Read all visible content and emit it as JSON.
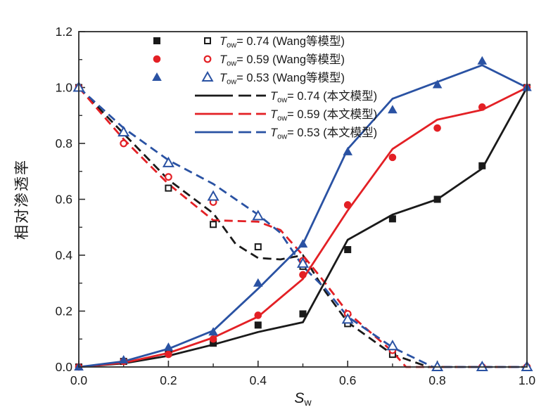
{
  "chart_data": {
    "type": "line",
    "title": "",
    "xlabel": "Sw",
    "ylabel": "相对渗透率",
    "x_axis": {
      "label_main": "S",
      "label_sub": "w",
      "range": [
        0.0,
        1.0
      ],
      "majors": [
        0.0,
        0.2,
        0.4,
        0.6,
        0.8,
        1.0
      ],
      "major_labels": [
        "0.0",
        "0.2",
        "0.4",
        "0.6",
        "0.8",
        "1.0"
      ],
      "minor_step": 0.1
    },
    "y_axis": {
      "label": "相对渗透率",
      "range": [
        0.0,
        1.2
      ],
      "majors": [
        0.0,
        0.2,
        0.4,
        0.6,
        0.8,
        1.0,
        1.2
      ],
      "major_labels": [
        "0.0",
        "0.2",
        "0.4",
        "0.6",
        "0.8",
        "1.0",
        "1.2"
      ],
      "minor_step": 0.1
    },
    "grid": false,
    "legend_position": "top-center-inside",
    "colors": {
      "black": "#1a1a1a",
      "red": "#e32025",
      "blue": "#2a52a3",
      "frame": "#2b2b2b",
      "background": "#ffffff"
    },
    "legend": {
      "prefix_italic": "T",
      "prefix_sub": "ow",
      "rows": [
        {
          "style": "markers",
          "marker": "square",
          "color": "black",
          "text": "= 0.74 (Wang等模型)"
        },
        {
          "style": "markers",
          "marker": "circle",
          "color": "red",
          "text": "= 0.59  (Wang等模型)"
        },
        {
          "style": "markers",
          "marker": "triangle",
          "color": "blue",
          "text": "= 0.53 (Wang等模型)"
        },
        {
          "style": "lines",
          "marker": "none",
          "color": "black",
          "text": "= 0.74 (本文模型)"
        },
        {
          "style": "lines",
          "marker": "none",
          "color": "red",
          "text": "= 0.59 (本文模型)"
        },
        {
          "style": "lines",
          "marker": "none",
          "color": "blue",
          "text": "= 0.53 (本文模型)"
        }
      ]
    },
    "series": [
      {
        "id": "line-tow074-dashed",
        "legend": "Tow= 0.74 (本文模型)",
        "type": "line",
        "style": "dashed",
        "color": "black",
        "x": [
          0,
          0.1,
          0.2,
          0.3,
          0.35,
          0.4,
          0.45,
          0.5,
          0.55,
          0.6,
          0.7,
          0.78,
          1.0
        ],
        "y": [
          1.0,
          0.835,
          0.67,
          0.55,
          0.44,
          0.39,
          0.385,
          0.4,
          0.27,
          0.16,
          0.045,
          0.0,
          0.0
        ]
      },
      {
        "id": "line-tow059-dashed",
        "legend": "Tow= 0.59 (本文模型)",
        "type": "line",
        "style": "dashed",
        "color": "red",
        "x": [
          0,
          0.1,
          0.2,
          0.3,
          0.4,
          0.45,
          0.5,
          0.55,
          0.6,
          0.7,
          0.73,
          1.0
        ],
        "y": [
          1.0,
          0.815,
          0.655,
          0.525,
          0.52,
          0.49,
          0.4,
          0.3,
          0.195,
          0.055,
          0.0,
          0.0
        ]
      },
      {
        "id": "line-tow053-dashed",
        "legend": "Tow= 0.53 (本文模型)",
        "type": "line",
        "style": "dashed",
        "color": "blue",
        "x": [
          0,
          0.1,
          0.2,
          0.3,
          0.4,
          0.45,
          0.5,
          0.55,
          0.6,
          0.7,
          0.79,
          1.0
        ],
        "y": [
          1.0,
          0.855,
          0.74,
          0.655,
          0.545,
          0.48,
          0.36,
          0.28,
          0.18,
          0.07,
          0.0,
          0.0
        ]
      },
      {
        "id": "line-tow074-solid",
        "legend": "Tow= 0.74 (本文模型)",
        "type": "line",
        "style": "solid",
        "color": "black",
        "x": [
          0,
          0.1,
          0.2,
          0.3,
          0.4,
          0.5,
          0.6,
          0.7,
          0.8,
          0.9,
          1.0
        ],
        "y": [
          0.0,
          0.013,
          0.04,
          0.08,
          0.125,
          0.16,
          0.455,
          0.545,
          0.6,
          0.71,
          1.0
        ]
      },
      {
        "id": "line-tow059-solid",
        "legend": "Tow= 0.59 (本文模型)",
        "type": "line",
        "style": "solid",
        "color": "red",
        "x": [
          0,
          0.1,
          0.2,
          0.3,
          0.4,
          0.5,
          0.6,
          0.7,
          0.8,
          0.9,
          1.0
        ],
        "y": [
          0.0,
          0.015,
          0.05,
          0.105,
          0.18,
          0.315,
          0.56,
          0.78,
          0.885,
          0.92,
          1.0
        ]
      },
      {
        "id": "line-tow053-solid",
        "legend": "Tow= 0.53 (本文模型)",
        "type": "line",
        "style": "solid",
        "color": "blue",
        "x": [
          0,
          0.1,
          0.2,
          0.3,
          0.4,
          0.5,
          0.6,
          0.7,
          0.8,
          0.9,
          1.0
        ],
        "y": [
          0.0,
          0.02,
          0.065,
          0.13,
          0.28,
          0.44,
          0.78,
          0.96,
          1.02,
          1.08,
          1.0
        ]
      },
      {
        "id": "pts-tow074-open",
        "legend": "Tow= 0.74 (Wang等模型)",
        "type": "scatter",
        "marker": "square",
        "variant": "open",
        "color": "black",
        "x": [
          0,
          0.2,
          0.3,
          0.4,
          0.5,
          0.6,
          0.7
        ],
        "y": [
          1.0,
          0.64,
          0.51,
          0.43,
          0.36,
          0.155,
          0.045
        ]
      },
      {
        "id": "pts-tow059-open",
        "legend": "Tow= 0.59 (Wang等模型)",
        "type": "scatter",
        "marker": "circle",
        "variant": "open",
        "color": "red",
        "x": [
          0,
          0.1,
          0.2,
          0.3,
          0.5,
          0.6,
          0.7,
          0.9,
          1.0
        ],
        "y": [
          1.0,
          0.8,
          0.68,
          0.59,
          0.38,
          0.19,
          0.06,
          0.0,
          0.0
        ]
      },
      {
        "id": "pts-tow053-open",
        "legend": "Tow= 0.53 (Wang等模型)",
        "type": "scatter",
        "marker": "triangle",
        "variant": "open",
        "color": "blue",
        "x": [
          0,
          0.1,
          0.2,
          0.3,
          0.4,
          0.5,
          0.6,
          0.7,
          0.8,
          0.9,
          1.0
        ],
        "y": [
          1.0,
          0.84,
          0.73,
          0.61,
          0.54,
          0.37,
          0.17,
          0.075,
          0.0,
          0.0,
          0.0
        ]
      },
      {
        "id": "pts-tow074-filled",
        "legend": "Tow= 0.74 (Wang等模型)",
        "type": "scatter",
        "marker": "square",
        "variant": "filled",
        "color": "black",
        "x": [
          0,
          0.1,
          0.2,
          0.3,
          0.4,
          0.5,
          0.6,
          0.7,
          0.8,
          0.9,
          1.0
        ],
        "y": [
          0.0,
          0.02,
          0.05,
          0.085,
          0.15,
          0.19,
          0.42,
          0.53,
          0.6,
          0.72,
          1.0
        ]
      },
      {
        "id": "pts-tow059-filled",
        "legend": "Tow= 0.59 (Wang等模型)",
        "type": "scatter",
        "marker": "circle",
        "variant": "filled",
        "color": "red",
        "x": [
          0,
          0.1,
          0.2,
          0.3,
          0.4,
          0.5,
          0.6,
          0.7,
          0.8,
          0.9,
          1.0
        ],
        "y": [
          0.0,
          0.02,
          0.045,
          0.1,
          0.185,
          0.33,
          0.58,
          0.75,
          0.855,
          0.93,
          1.0
        ]
      },
      {
        "id": "pts-tow053-filled",
        "legend": "Tow= 0.53 (Wang等模型)",
        "type": "scatter",
        "marker": "triangle",
        "variant": "filled",
        "color": "blue",
        "x": [
          0,
          0.1,
          0.2,
          0.3,
          0.4,
          0.5,
          0.6,
          0.7,
          0.8,
          0.9,
          1.0
        ],
        "y": [
          0.0,
          0.025,
          0.07,
          0.125,
          0.3,
          0.44,
          0.77,
          0.92,
          1.01,
          1.095,
          1.0
        ]
      }
    ]
  }
}
